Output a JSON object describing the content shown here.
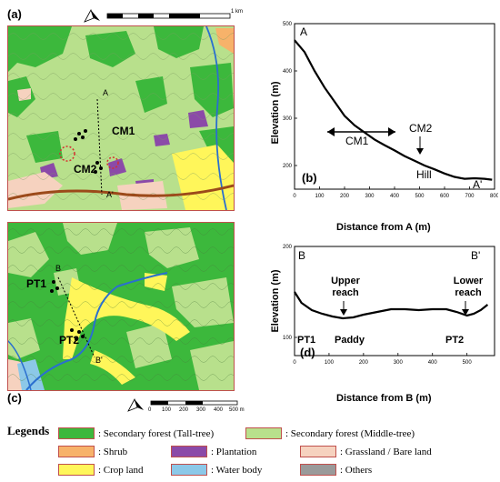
{
  "panels": {
    "a": {
      "label": "(a)",
      "scalebar_max": "1 km",
      "points": {
        "CM1": "CM1",
        "CM2": "CM2",
        "A": "A",
        "A_prime": "A'"
      }
    },
    "b": {
      "label": "(b)",
      "ylabel": "Elevation (m)",
      "xlabel": "Distance from A (m)",
      "start_label": "A",
      "end_label": "A'",
      "annotations": [
        "CM1",
        "CM2",
        "Hill"
      ]
    },
    "c": {
      "label": "(c)",
      "scalebar_ticks": [
        "0",
        "100",
        "200",
        "300",
        "400",
        "500 m"
      ],
      "points": {
        "PT1": "PT1",
        "PT2": "PT2",
        "B": "B",
        "B_prime": "B'"
      }
    },
    "d": {
      "label": "(d)",
      "ylabel": "Elevation (m)",
      "xlabel": "Distance from B (m)",
      "start_label": "B",
      "end_label": "B'",
      "annotations": [
        "Upper reach",
        "Lower reach",
        "Paddy",
        "PT1",
        "PT2"
      ]
    }
  },
  "legend": {
    "title": "Legends",
    "items": [
      {
        "label": ": Secondary forest (Tall-tree)",
        "color": "#3cb83c"
      },
      {
        "label": ": Secondary forest (Middle-tree)",
        "color": "#b8e08c"
      },
      {
        "label": ": Shrub",
        "color": "#f7b26a"
      },
      {
        "label": ": Plantation",
        "color": "#8b4aa8"
      },
      {
        "label": ": Grassland / Bare land",
        "color": "#f6d2bf"
      },
      {
        "label": ": Crop land",
        "color": "#fff65a"
      },
      {
        "label": ": Water body",
        "color": "#8cc8e8"
      },
      {
        "label": ": Others",
        "color": "#9a9a9a"
      }
    ]
  },
  "chart_data": [
    {
      "type": "line",
      "title": "",
      "xlabel": "Distance from A (m)",
      "ylabel": "Elevation (m)",
      "xlim": [
        0,
        800
      ],
      "ylim": [
        150,
        500
      ],
      "xticks": [
        0,
        100,
        200,
        300,
        400,
        500,
        600,
        700,
        800
      ],
      "yticks": [
        200,
        300,
        400,
        500
      ],
      "x": [
        0,
        40,
        80,
        120,
        160,
        200,
        240,
        280,
        320,
        360,
        400,
        440,
        480,
        520,
        560,
        600,
        640,
        680,
        720,
        760,
        790
      ],
      "values": [
        465,
        440,
        400,
        365,
        335,
        305,
        285,
        270,
        255,
        243,
        232,
        220,
        210,
        200,
        192,
        183,
        176,
        172,
        173,
        172,
        170
      ]
    },
    {
      "type": "line",
      "title": "",
      "xlabel": "Distance from B (m)",
      "ylabel": "Elevation (m)",
      "xlim": [
        0,
        580
      ],
      "ylim": [
        80,
        200
      ],
      "xticks": [
        0,
        100,
        200,
        300,
        400,
        500
      ],
      "yticks": [
        100,
        200
      ],
      "x": [
        0,
        20,
        50,
        80,
        110,
        140,
        170,
        200,
        240,
        280,
        320,
        360,
        400,
        440,
        470,
        500,
        520,
        540,
        560
      ],
      "values": [
        150,
        138,
        130,
        126,
        123,
        121,
        122,
        125,
        128,
        131,
        131,
        130,
        131,
        131,
        128,
        124,
        126,
        130,
        136
      ]
    }
  ]
}
